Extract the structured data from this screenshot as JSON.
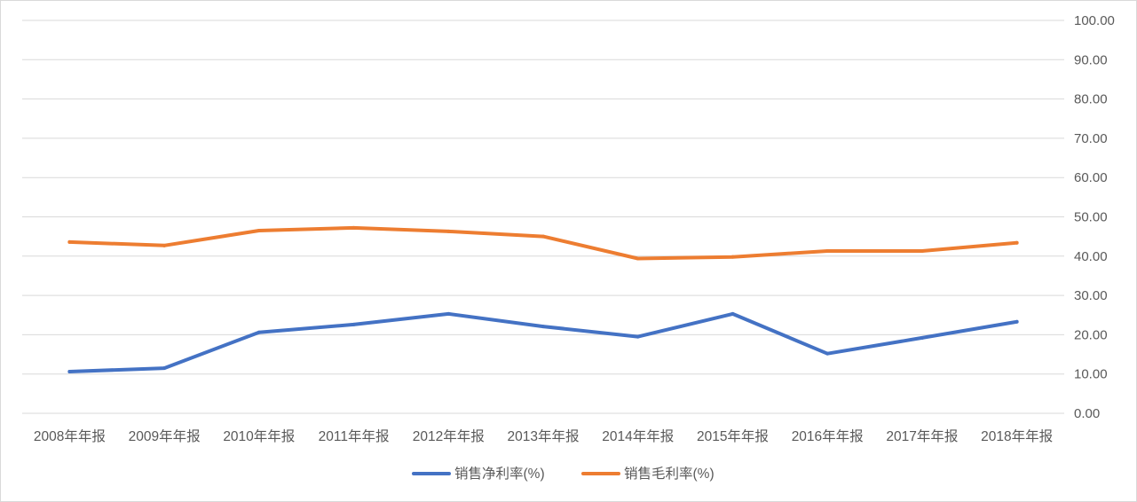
{
  "chart_data": {
    "type": "line",
    "categories": [
      "2008年年报",
      "2009年年报",
      "2010年年报",
      "2011年年报",
      "2012年年报",
      "2013年年报",
      "2014年年报",
      "2015年年报",
      "2016年年报",
      "2017年年报",
      "2018年年报"
    ],
    "series": [
      {
        "name": "销售净利率(%)",
        "color": "#4472C4",
        "values": [
          10.6,
          11.5,
          20.6,
          22.6,
          25.3,
          22.1,
          19.5,
          25.3,
          15.2,
          19.2,
          23.3
        ]
      },
      {
        "name": "销售毛利率(%)",
        "color": "#ED7D31",
        "values": [
          43.6,
          42.7,
          46.5,
          47.2,
          46.3,
          45.0,
          39.4,
          39.8,
          41.3,
          41.3,
          43.4
        ]
      }
    ],
    "ylim": [
      0,
      100
    ],
    "y_ticks": [
      "0.00",
      "10.00",
      "20.00",
      "30.00",
      "40.00",
      "50.00",
      "60.00",
      "70.00",
      "80.00",
      "90.00",
      "100.00"
    ],
    "y_axis_side": "right",
    "grid": true,
    "legend_position": "bottom",
    "gridline_color": "#d9d9d9"
  }
}
